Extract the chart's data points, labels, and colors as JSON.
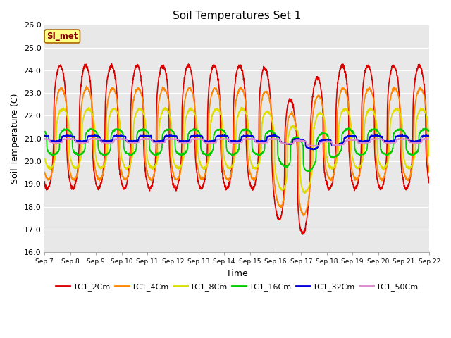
{
  "title": "Soil Temperatures Set 1",
  "xlabel": "Time",
  "ylabel": "Soil Temperature (C)",
  "ylim": [
    16.0,
    26.0
  ],
  "yticks": [
    16.0,
    17.0,
    18.0,
    19.0,
    20.0,
    21.0,
    22.0,
    23.0,
    24.0,
    25.0,
    26.0
  ],
  "xtick_labels": [
    "Sep 7",
    "Sep 8",
    "Sep 9",
    "Sep 10",
    "Sep 11",
    "Sep 12",
    "Sep 13",
    "Sep 14",
    "Sep 15",
    "Sep 16",
    "Sep 17",
    "Sep 18",
    "Sep 19",
    "Sep 20",
    "Sep 21",
    "Sep 22"
  ],
  "series_colors": [
    "#dd0000",
    "#ff8800",
    "#dddd00",
    "#00cc00",
    "#0000dd",
    "#dd88cc"
  ],
  "series_names": [
    "TC1_2Cm",
    "TC1_4Cm",
    "TC1_8Cm",
    "TC1_16Cm",
    "TC1_32Cm",
    "TC1_50Cm"
  ],
  "annotation": "SI_met",
  "background_color": "#e8e8e8",
  "figure_bg": "#ffffff",
  "n_points": 2160,
  "period_hours": 24,
  "days": 15
}
